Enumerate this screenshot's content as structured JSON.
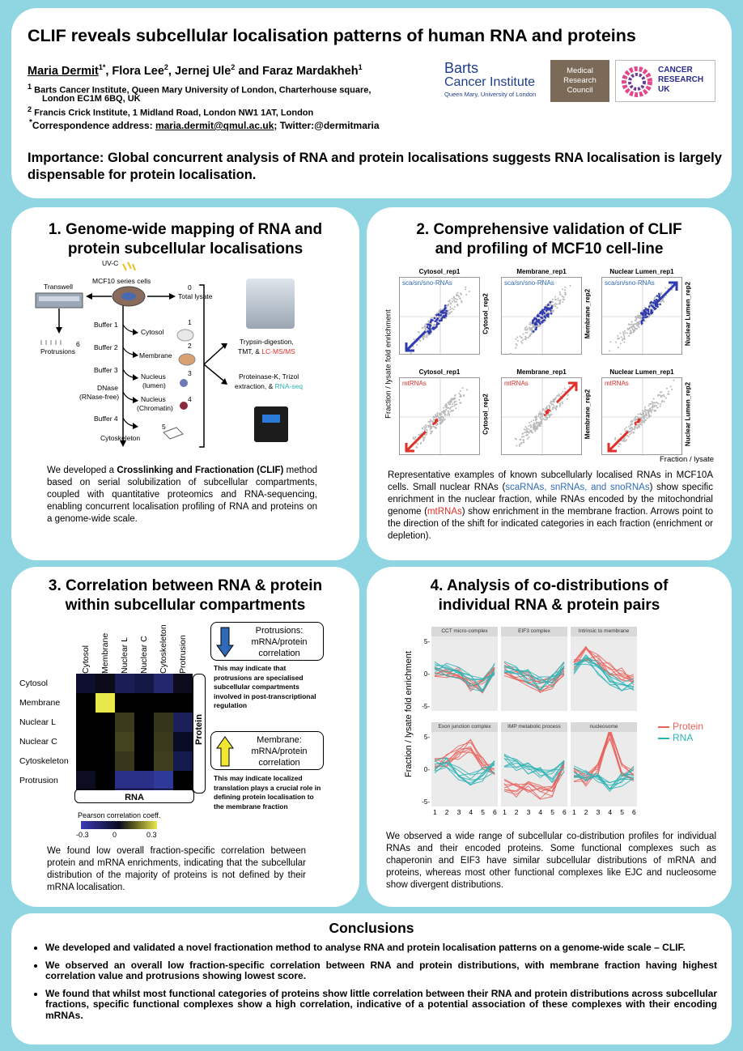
{
  "header": {
    "title": "CLIF reveals subcellular localisation patterns of human RNA and proteins",
    "authors_main": "Maria Dermit",
    "authors_sup1": "1*",
    "authors_mid": ", Flora Lee",
    "authors_sup2": "2",
    "authors_mid2": ", Jernej Ule",
    "authors_sup3": "2",
    "authors_tail": " and Faraz Mardakheh",
    "authors_sup4": "1",
    "affil1_num": "1",
    "affil1_line1": "Barts Cancer Institute, Queen Mary University of London, Charterhouse square,",
    "affil1_line2": "London EC1M 6BQ,  UK",
    "affil2_num": "2",
    "affil2_line1": "Francis Crick Institute, 1 Midland Road, London NW1 1AT,  London",
    "corr_star": "*",
    "corr_prefix": "Correspondence address: ",
    "corr_email": "maria.dermit@qmul.ac.uk",
    "corr_suffix": "; Twitter:@dermitmaria",
    "importance": "Importance: Global concurrent analysis of RNA and protein localisations suggests RNA localisation is largely dispensable for protein localisation.",
    "logo_barts_1": "Barts",
    "logo_barts_2": "Cancer Institute",
    "logo_barts_3": "Queen Mary, University of London",
    "logo_mrc_1": "Medical",
    "logo_mrc_2": "Research",
    "logo_mrc_3": "Council",
    "logo_cruk_1": "CANCER",
    "logo_cruk_2": "RESEARCH",
    "logo_cruk_3": "UK"
  },
  "panel1": {
    "title_l1": "1. Genome-wide mapping of  RNA and",
    "title_l2": "protein subcellular localisations",
    "uvc": "UV-C",
    "cells": "MCF10 series cells",
    "transwell": "Transwell",
    "protrusions": "Protrusions",
    "n6": "6",
    "n0": "0",
    "total": "Total lysate",
    "buffer1": "Buffer 1",
    "buffer2": "Buffer 2",
    "buffer3": "Buffer 3",
    "buffer4": "Buffer 4",
    "dnase1": "DNase",
    "dnase2": "(RNase-free)",
    "cytosol": "Cytosol",
    "membrane": "Membrane",
    "nucleus1": "Nucleus",
    "nucleus1b": "(lumen)",
    "nucleus2": "Nucleus",
    "nucleus2b": "(Chromatin)",
    "cytoskeleton": "Cytoskeleton",
    "n1": "1",
    "n2": "2",
    "n3": "3",
    "n4": "4",
    "n5": "5",
    "ms1": "Trypsin-digestion,",
    "ms2": "TMT, & ",
    "ms3": "LC-MS/MS",
    "seq1": "Proteinase-K, Trizol",
    "seq2": "extraction, & ",
    "seq3": "RNA-seq",
    "desc_pre": "We developed a ",
    "desc_bold": "Crosslinking and Fractionation (CLIF)",
    "desc_post": " method based on serial solubilization of subcellular compartments, coupled with quantitative proteomics and RNA-sequencing, enabling concurrent localisation profiling of RNA and proteins on a genome-wide scale."
  },
  "panel2": {
    "title_l1": "2. Comprehensive validation of CLIF",
    "title_l2": "and profiling of MCF10 cell-line",
    "yaxis": "Fraction / lysate  fold enrichment",
    "xaxis": "Fraction / lysate",
    "row1": [
      {
        "title": "Cytosol_rep1",
        "ylab": "Cytosol_rep2",
        "tag": "sca/sn/sno-RNAs"
      },
      {
        "title": "Membrane_rep1",
        "ylab": "Membrane_rep2",
        "tag": "sca/sn/sno-RNAs"
      },
      {
        "title": "Nuclear Lumen_rep1",
        "ylab": "Nuclear Lumen_rep2",
        "tag": "sca/sn/sno-RNAs"
      }
    ],
    "row2": [
      {
        "title": "Cytosol_rep1",
        "ylab": "Cytosol_rep2",
        "tag": "mtRNAs"
      },
      {
        "title": "Membrane_rep1",
        "ylab": "Membrane_rep2",
        "tag": "mtRNAs"
      },
      {
        "title": "Nuclear Lumen_rep1",
        "ylab": "Nuclear Lumen_rep2",
        "tag": "mtRNAs"
      }
    ],
    "desc_a": "Representative examples of known subcellularly localised RNAs in MCF10A cells. Small nuclear RNAs (",
    "desc_blue": "scaRNAs, snRNAs, and snoRNAs",
    "desc_b": ") show specific enrichment in the nuclear fraction, while RNAs encoded by the mitochondrial genome (",
    "desc_red": "mtRNAs",
    "desc_c": ") show enrichment in the membrane fraction. Arrows point to the direction of the shift for indicated categories in each fraction (enrichment or depletion)."
  },
  "panel3": {
    "title_l1": "3. Correlation between RNA & protein",
    "title_l2": "within subcellular compartments",
    "cols": [
      "Cytosol",
      "Membrane",
      "Nuclear L",
      "Nuclear C",
      "Cytoskeleton",
      "Protrusion"
    ],
    "rows": [
      "Cytosol",
      "Membrane",
      "Nuclear L",
      "Nuclear C",
      "Cytoskeleton",
      "Protrusion"
    ],
    "heat_colors": [
      [
        "#0e0f2e",
        "#0a0a18",
        "#1a1e55",
        "#141844",
        "#23286e",
        "#0c0c1c"
      ],
      [
        "#000000",
        "#e8e84a",
        "#000000",
        "#000000",
        "#000000",
        "#000000"
      ],
      [
        "#000000",
        "#000000",
        "#3c3a1c",
        "#000000",
        "#35351a",
        "#1b1f5a"
      ],
      [
        "#000000",
        "#000000",
        "#44431f",
        "#000000",
        "#3a391c",
        "#0a0b24"
      ],
      [
        "#000000",
        "#000000",
        "#38371b",
        "#000000",
        "#3f3e1d",
        "#151a4c"
      ],
      [
        "#0c0d22",
        "#000000",
        "#2a2f88",
        "#2a2f88",
        "#2d3a9a",
        "#000000"
      ]
    ],
    "protein": "Protein",
    "rna": "RNA",
    "legend_title": "Pearson correlation coeff.",
    "legend_ticks": [
      "-0.3",
      "0",
      "0.3"
    ],
    "box1_l1": "Protrusions:",
    "box1_l2": "mRNA/protein",
    "box1_l3": "correlation",
    "box1_note": "This may indicate that protrusions are specialised subcellular compartments involved in post-transcriptional regulation",
    "box2_l1": "Membrane:",
    "box2_l2": "mRNA/protein",
    "box2_l3": "correlation",
    "box2_note": "This may indicate localized translation plays a crucial role in defining protein localisation to the membrane fraction",
    "desc": "We found low overall fraction-specific correlation between protein and mRNA enrichments, indicating that the subcellular distribution of the majority of proteins is not defined by their mRNA localisation."
  },
  "panel4": {
    "title_l1": "4. Analysis of co-distributions of",
    "title_l2": "individual RNA & protein pairs",
    "yaxis": "Fraction / lysate  fold enrichment",
    "facets": [
      "CCT micro-complex",
      "EIF3 complex",
      "Intrinsic to membrane",
      "Exon junction complex",
      "IMP metabolic process",
      "nucleosome"
    ],
    "yticks": [
      "5-",
      "0-",
      "-5-"
    ],
    "xticks": [
      "1",
      "2",
      "3",
      "4",
      "5",
      "6"
    ],
    "legend": [
      {
        "name": "Protein",
        "color": "#e8625c"
      },
      {
        "name": "RNA",
        "color": "#2eb3b5"
      }
    ],
    "desc": "We observed a wide range of subcellular co-distribution profiles for individual RNAs and their encoded proteins. Some functional complexes such as chaperonin and EIF3 have  similar subcellular distributions of mRNA and proteins, whereas most other functional complexes like EJC and nucleosome show divergent distributions."
  },
  "conclusions": {
    "title": "Conclusions",
    "items": [
      "We developed and validated a novel fractionation method to analyse  RNA and protein localisation patterns on a genome-wide scale – CLIF.",
      "We observed an overall low fraction-specific correlation between RNA and protein distributions, with membrane fraction having highest correlation value and protrusions showing lowest score.",
      "We found that whilst most functional categories of proteins show little correlation between their RNA and protein distributions across subcellular fractions, specific functional complexes show a high correlation, indicative of a potential association of these complexes with their encoding mRNAs."
    ]
  },
  "colors": {
    "background": "#8fd5e2",
    "red": "#e0302a",
    "blue": "#2e6ab8",
    "teal": "#2eb3b5",
    "salmon": "#e8625c"
  }
}
